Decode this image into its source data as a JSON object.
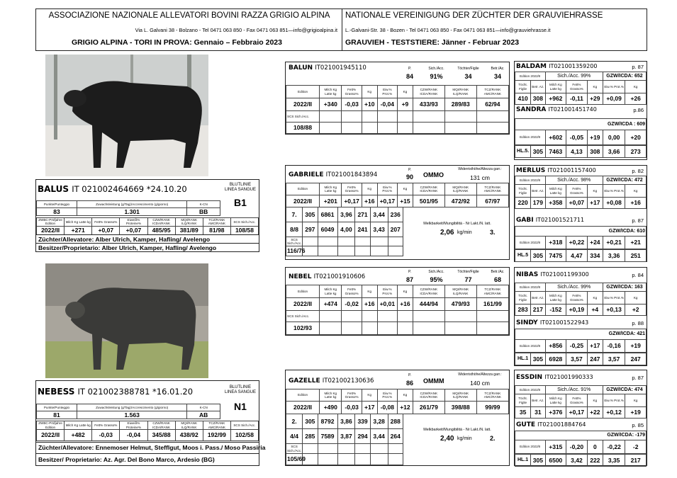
{
  "header": {
    "it_assoc": "ASSOCIAZIONE NAZIONALE ALLEVATORI BOVINI RAZZA GRIGIO ALPINA",
    "it_addr": "Via L. Galvani 38 - Bolzano - Tel 0471 063 850 - Fax  0471 063 851—info@grigioalpina.it",
    "it_title": "GRIGIO ALPINA - TORI IN PROVA:  Gennaio – Febbraio 2023",
    "de_assoc": "NATIONALE VEREINIGUNG DER ZÜCHTER DER GRAUVIEHRASSE",
    "de_addr": "L.-Galvani-Str. 38 - Bozen - Tel 0471 063 850 - Fax  0471 063 851—info@grauviehrasse.it",
    "de_title": "GRAUVIEH - TESTSTIERE:  Jänner - Februar 2023"
  },
  "photos": {
    "balus": "bull-photo",
    "nebess": "bull-photo"
  },
  "balus": {
    "name": "BALUS",
    "id": "IT 021002464669 *24.10.20",
    "blutlinie": "BLUTLINIE\nLINEA SANGUE",
    "line": "B1",
    "h1": [
      "Punkte/Punteggio",
      "Zuwachsleistung (g/Tag)/Accrescimento (g/giorno)",
      "K-CN"
    ],
    "v1": [
      "83",
      "1.301",
      "BB"
    ],
    "h2": [
      "ZWBC-Prüfjahre Edition",
      "Milch Kg Latte kg",
      "Fett% Grasso%",
      "Eiweiß% Proteine%",
      "CZW/RANK ICDA/RANK",
      "MQI/RANK ILQ/RANK",
      "TCZ/RANK AMC/RANK",
      "SCS Sich./Acc."
    ],
    "v2": [
      "2022/II",
      "+271",
      "+0,07",
      "+0,07",
      "485/95",
      "381/89",
      "81/98",
      "108/58"
    ],
    "breeder": "Züchter/Allevatore:  Alber Ulrich, Kamper, Hafling/ Avelengo",
    "owner": "Besitzer/Proprietario: Alber Ulrich, Kamper, Hafling/ Avelengo"
  },
  "nebess": {
    "name": "NEBESS",
    "id": "IT 021002388781 *16.01.20",
    "blutlinie": "BLUTLINIE\nLINEA SANGUE",
    "line": "N1",
    "h1": [
      "Punkte/Punteggio",
      "Zuwachsleistung (g/Tag)/Accrescimento (g/giorno)",
      "K-CN"
    ],
    "v1": [
      "81",
      "1.563",
      "AB"
    ],
    "h2": [
      "ZWBC-Prüfjahre Edition",
      "Milch Kg Latte kg",
      "Fett% Grasso%",
      "Eiweiß% Proteine%",
      "CZW/RANK ICDA/RANK",
      "MQI/RANK ILQ/RANK",
      "TCZ/RANK AMC/RANK",
      "SCS Sich./Acc."
    ],
    "v2": [
      "2022/II",
      "+482",
      "-0,03",
      "-0,04",
      "345/88",
      "438/92",
      "192/99",
      "102/58"
    ],
    "breeder": "Züchter/Allevatore: Ennemoser Helmut, Stefflgut, Moos i. Pass./ Moso Passiria",
    "owner": "Besitzer/ Proprietario: Az. Agr. Del Bono Marco, Ardesio (BG)"
  },
  "mid_headers": [
    "Edition",
    "Milch Kg Latte kg",
    "Fett% Grasso%",
    "Kg",
    "Eiw.% Prot.%",
    "Kg",
    "CZW/RANK ICDA/RANK",
    "MQI/RANK ILQ/RANK",
    "TCZ/RANK AMC/RANK"
  ],
  "balun": {
    "name": "BALUN",
    "id": "IT021001945110",
    "top_h": [
      "P.",
      "Sich./Acc.",
      "Töchter/Figlie",
      "Betr./Az."
    ],
    "top_v": [
      "84",
      "91%",
      "34",
      "34"
    ],
    "vals": [
      "2022/II",
      "+340",
      "-0,03",
      "+10",
      "-0,04",
      "+9",
      "433/93",
      "289/83",
      "62/94"
    ],
    "scs_label": "SCS Sich./Acc.",
    "scs": "108/88"
  },
  "gabriele": {
    "name": "GABRIELE",
    "id": "IT021001843894",
    "p_label": "P.",
    "p": "90",
    "kcn": "OMMO",
    "wh_label": "Widerristhöhe/Altezza garr.:",
    "wh": "131 cm",
    "vals": [
      "2022/II",
      "+201",
      "+0,17",
      "+16",
      "+0,17",
      "+15",
      "501/95",
      "472/92",
      "67/97"
    ],
    "lact": [
      [
        "7.",
        "305",
        "6861",
        "3,96",
        "271",
        "3,44",
        "236"
      ],
      [
        "8/8",
        "297",
        "6049",
        "4,00",
        "241",
        "3,43",
        "207"
      ]
    ],
    "melk_label": "Melkbarkeit/Mungibilità - Nr Lakt./N. latt.",
    "melk": "2,06",
    "melk_unit": "kg/min",
    "melk_n": "3.",
    "scs_label": "SCS Sich./Acc.",
    "scs": "116/76"
  },
  "nebel": {
    "name": "NEBEL",
    "id": "IT021001910606",
    "top_h": [
      "P.",
      "Sich./Acc.",
      "Töchter/Figlie",
      "Betr./Az."
    ],
    "top_v": [
      "87",
      "95%",
      "77",
      "68"
    ],
    "vals": [
      "2022/II",
      "+474",
      "-0,02",
      "+16",
      "+0,01",
      "+16",
      "444/94",
      "479/93",
      "161/99"
    ],
    "scs_label": "SCS Sich./Acc.",
    "scs": "102/93"
  },
  "gazelle": {
    "name": "GAZELLE",
    "id": "IT021002130636",
    "p_label": "P.",
    "p": "86",
    "kcn": "OMMM",
    "wh_label": "Widerristhöhe/Altezza garr.:",
    "wh": "140 cm",
    "vals": [
      "2022/II",
      "+490",
      "-0,03",
      "+17",
      "-0,08",
      "+12",
      "261/79",
      "398/88",
      "99/99"
    ],
    "lact": [
      [
        "2.",
        "305",
        "8792",
        "3,86",
        "339",
        "3,28",
        "288"
      ],
      [
        "4/4",
        "285",
        "7589",
        "3,87",
        "294",
        "3,44",
        "264"
      ]
    ],
    "melk_label": "Melkbarkeit/Mungibilità - Nr Lakt./N. latt.",
    "melk": "2,40",
    "melk_unit": "kg/min",
    "melk_n": "2.",
    "scs_label": "SCS Sich./Acc.",
    "scs": "105/69"
  },
  "right_headers": [
    "Töcht. Figlie",
    "Betr. Az.",
    "Milch Kg Latte kg",
    "Fett% Grasso%",
    "Kg",
    "Eiw.% Prot.%",
    "Kg"
  ],
  "baldam": {
    "name": "BALDAM",
    "id": "IT021001359200",
    "p": "p. 87",
    "ed": "Edition 2022/II",
    "acc": "Sich./Acc. 99%",
    "gzw": "GZW/ICDA: 652",
    "vals": [
      "410",
      "308",
      "+962",
      "-0,11",
      "+29",
      "+0,09",
      "+26"
    ]
  },
  "sandra": {
    "name": "SANDRA",
    "id": "IT021001451740",
    "p": "p.86",
    "gzw": "GZW/ICDA : 609",
    "ed": "Edition 2022/II",
    "a": [
      "+602",
      "-0,05",
      "+19",
      "0,00",
      "+20"
    ],
    "hl": "HL.5.",
    "b": [
      "305",
      "7463",
      "4,13",
      "308",
      "3,66",
      "273"
    ]
  },
  "merlus": {
    "name": "MERLUS",
    "id": "IT021001157400",
    "p": "p. 82",
    "ed": "Edition 2022/II",
    "acc": "Sich./Acc. 98%",
    "gzw": "GZW/ICDA: 472",
    "vals": [
      "220",
      "179",
      "+358",
      "+0,07",
      "+17",
      "+0,08",
      "+16"
    ]
  },
  "gabi": {
    "name": "GABI",
    "id": "IT021001521711",
    "p": "p. 87",
    "gzw": "GZW/ICDA: 610",
    "ed": "Edition 2022/II",
    "a": [
      "+318",
      "+0,22",
      "+24",
      "+0,21",
      "+21"
    ],
    "hl": "HL.5",
    "b": [
      "305",
      "7475",
      "4,47",
      "334",
      "3,36",
      "251"
    ]
  },
  "nibas": {
    "name": "NIBAS",
    "id": "IT021001199300",
    "p": "p. 84",
    "ed": "Edition 2022/II",
    "acc": "Sich./Acc. 99%",
    "gzw": "GZW/ICDA: 163",
    "vals": [
      "283",
      "217",
      "-152",
      "+0,19",
      "+4",
      "+0,13",
      "+2"
    ]
  },
  "sindy": {
    "name": "SINDY",
    "id": "IT021001522943",
    "p": "p. 88",
    "gzw": "GZW/ICDA: 421",
    "ed": "Edition 2022/II",
    "a": [
      "+856",
      "-0,25",
      "+17",
      "-0,16",
      "+19"
    ],
    "hl": "HL.1",
    "b": [
      "305",
      "6928",
      "3,57",
      "247",
      "3,57",
      "247"
    ]
  },
  "essdin": {
    "name": "ESSDIN",
    "id": "IT021001990333",
    "p": "p. 87",
    "ed": "Edition 2022/II",
    "acc": "Sich./Acc. 91%",
    "gzw": "GZW/ICDA: 474",
    "vals": [
      "35",
      "31",
      "+376",
      "+0,17",
      "+22",
      "+0,12",
      "+19"
    ]
  },
  "gute": {
    "name": "GUTE",
    "id": "IT021001884764",
    "p": "p. 85",
    "gzw": "GZW/ICDA: -179",
    "ed": "Edition 2022/II",
    "a": [
      "+315",
      "-0,20",
      "0",
      "-0,22",
      "-2"
    ],
    "hl": "HL.1",
    "b": [
      "305",
      "6500",
      "3,42",
      "222",
      "3,35",
      "217"
    ]
  }
}
